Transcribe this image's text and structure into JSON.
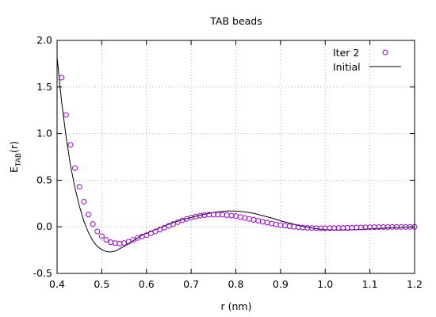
{
  "chart_data": {
    "type": "scatter",
    "title": "TAB beads",
    "xlabel": "r (nm)",
    "ylabel_main": "E",
    "ylabel_sub": "TAB",
    "ylabel_tail": "(r)",
    "xlim": [
      0.4,
      1.2
    ],
    "ylim": [
      -0.5,
      2.0
    ],
    "xticks": [
      0.4,
      0.5,
      0.6,
      0.7,
      0.8,
      0.9,
      1.0,
      1.1,
      1.2
    ],
    "xtick_labels": [
      "0.4",
      "0.5",
      "0.6",
      "0.7",
      "0.8",
      "0.9",
      "1.0",
      "1.1",
      "1.2"
    ],
    "yticks": [
      -0.5,
      0.0,
      0.5,
      1.0,
      1.5,
      2.0
    ],
    "ytick_labels": [
      "-0.5",
      "0.0",
      "0.5",
      "1.0",
      "1.5",
      "2.0"
    ],
    "grid": true,
    "legend_position": "top-right",
    "series": [
      {
        "name": "Iter 2",
        "style": "points-open-circle",
        "color": "#9400d3",
        "x": [
          0.41,
          0.42,
          0.43,
          0.44,
          0.45,
          0.46,
          0.47,
          0.48,
          0.49,
          0.5,
          0.51,
          0.52,
          0.53,
          0.54,
          0.55,
          0.56,
          0.57,
          0.58,
          0.59,
          0.6,
          0.61,
          0.62,
          0.63,
          0.64,
          0.65,
          0.66,
          0.67,
          0.68,
          0.69,
          0.7,
          0.71,
          0.72,
          0.73,
          0.74,
          0.75,
          0.76,
          0.77,
          0.78,
          0.79,
          0.8,
          0.81,
          0.82,
          0.83,
          0.84,
          0.85,
          0.86,
          0.87,
          0.88,
          0.89,
          0.9,
          0.91,
          0.92,
          0.93,
          0.94,
          0.95,
          0.96,
          0.97,
          0.98,
          0.99,
          1.0,
          1.01,
          1.02,
          1.03,
          1.04,
          1.05,
          1.06,
          1.07,
          1.08,
          1.09,
          1.1,
          1.11,
          1.12,
          1.13,
          1.14,
          1.15,
          1.16,
          1.17,
          1.18,
          1.19,
          1.2
        ],
        "y": [
          1.6,
          1.2,
          0.88,
          0.63,
          0.43,
          0.27,
          0.13,
          0.03,
          -0.05,
          -0.1,
          -0.14,
          -0.165,
          -0.175,
          -0.18,
          -0.175,
          -0.16,
          -0.14,
          -0.12,
          -0.105,
          -0.09,
          -0.07,
          -0.05,
          -0.03,
          -0.01,
          0.01,
          0.03,
          0.05,
          0.07,
          0.085,
          0.1,
          0.11,
          0.12,
          0.125,
          0.13,
          0.13,
          0.13,
          0.13,
          0.125,
          0.12,
          0.115,
          0.105,
          0.095,
          0.085,
          0.075,
          0.065,
          0.055,
          0.045,
          0.035,
          0.025,
          0.018,
          0.012,
          0.006,
          0.0,
          -0.004,
          -0.008,
          -0.011,
          -0.013,
          -0.014,
          -0.015,
          -0.015,
          -0.014,
          -0.013,
          -0.012,
          -0.011,
          -0.01,
          -0.009,
          -0.008,
          -0.007,
          -0.006,
          -0.005,
          -0.004,
          -0.004,
          -0.003,
          -0.003,
          -0.002,
          -0.002,
          -0.002,
          -0.001,
          -0.001,
          -0.001
        ]
      },
      {
        "name": "Initial",
        "style": "line",
        "color": "#000000",
        "x": [
          0.4,
          0.41,
          0.42,
          0.43,
          0.44,
          0.45,
          0.46,
          0.47,
          0.48,
          0.49,
          0.5,
          0.51,
          0.52,
          0.53,
          0.54,
          0.55,
          0.56,
          0.57,
          0.58,
          0.59,
          0.6,
          0.62,
          0.64,
          0.66,
          0.68,
          0.7,
          0.72,
          0.74,
          0.76,
          0.78,
          0.8,
          0.82,
          0.84,
          0.86,
          0.88,
          0.9,
          0.92,
          0.94,
          0.96,
          0.98,
          1.0,
          1.02,
          1.04,
          1.06,
          1.08,
          1.1,
          1.12,
          1.14,
          1.16,
          1.18,
          1.2
        ],
        "y": [
          1.82,
          1.35,
          0.97,
          0.66,
          0.42,
          0.22,
          0.06,
          -0.06,
          -0.15,
          -0.21,
          -0.245,
          -0.265,
          -0.27,
          -0.26,
          -0.235,
          -0.21,
          -0.18,
          -0.15,
          -0.12,
          -0.09,
          -0.07,
          -0.03,
          0.01,
          0.045,
          0.075,
          0.1,
          0.125,
          0.145,
          0.16,
          0.17,
          0.17,
          0.16,
          0.145,
          0.12,
          0.095,
          0.065,
          0.04,
          0.015,
          -0.005,
          -0.02,
          -0.03,
          -0.035,
          -0.035,
          -0.032,
          -0.028,
          -0.022,
          -0.017,
          -0.012,
          -0.008,
          -0.004,
          -0.002
        ]
      }
    ]
  }
}
